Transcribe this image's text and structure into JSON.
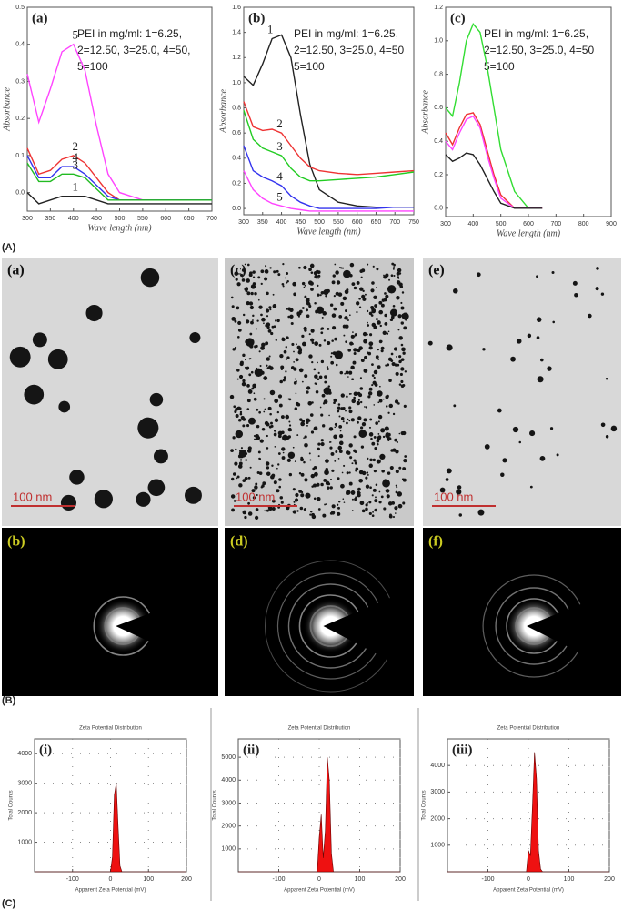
{
  "figure_labels": [
    "(A)",
    "(B)",
    "(C)"
  ],
  "chart_data": [
    {
      "type": "line",
      "panel_label": "(a)",
      "annotation": [
        "PEI in mg/ml: 1=6.25,",
        "2=12.50, 3=25.0, 4=50,",
        "5=100"
      ],
      "x_label": "Wave length (nm)",
      "y_label": "Absorbance",
      "x": [
        300,
        325,
        350,
        375,
        400,
        425,
        450,
        475,
        500,
        550,
        600,
        650,
        700
      ],
      "series": [
        {
          "name": "5",
          "color": "#ff44ff",
          "values": [
            0.32,
            0.19,
            0.28,
            0.38,
            0.4,
            0.33,
            0.18,
            0.05,
            0.0,
            -0.02,
            -0.02,
            -0.02,
            -0.02
          ]
        },
        {
          "name": "2",
          "color": "#ee3333",
          "values": [
            0.12,
            0.05,
            0.06,
            0.09,
            0.1,
            0.08,
            0.04,
            0.0,
            -0.02,
            -0.02,
            -0.02,
            -0.02,
            -0.02
          ]
        },
        {
          "name": "4",
          "color": "#3333ee",
          "values": [
            0.1,
            0.04,
            0.04,
            0.07,
            0.07,
            0.05,
            0.02,
            -0.01,
            -0.02,
            -0.02,
            -0.02,
            -0.02,
            -0.02
          ]
        },
        {
          "name": "3",
          "color": "#22bb22",
          "values": [
            0.08,
            0.03,
            0.03,
            0.05,
            0.05,
            0.04,
            0.01,
            -0.02,
            -0.02,
            -0.02,
            -0.02,
            -0.02,
            -0.02
          ]
        },
        {
          "name": "1",
          "color": "#222222",
          "values": [
            0.0,
            -0.03,
            -0.02,
            -0.01,
            -0.01,
            -0.01,
            -0.02,
            -0.03,
            -0.03,
            -0.03,
            -0.03,
            -0.03,
            -0.03
          ]
        }
      ],
      "xlim": [
        300,
        700
      ],
      "xticks": [
        300,
        350,
        400,
        450,
        500,
        550,
        600,
        650,
        700
      ],
      "ylim": [
        -0.05,
        0.5
      ],
      "yticks": [
        {
          "value": 0,
          "label": "0.0"
        },
        0.1,
        0.2,
        0.3,
        0.4,
        0.5
      ]
    },
    {
      "type": "line",
      "panel_label": "(b)",
      "annotation": [
        "PEI in mg/ml: 1=6.25,",
        "2=12.50, 3=25.0, 4=50",
        "5=100"
      ],
      "x_label": "Wave length (nm)",
      "y_label": "Absorbance",
      "x": [
        300,
        325,
        350,
        375,
        400,
        425,
        450,
        475,
        500,
        550,
        600,
        650,
        700,
        750
      ],
      "series": [
        {
          "name": "1",
          "color": "#222222",
          "values": [
            1.05,
            0.98,
            1.15,
            1.35,
            1.38,
            1.2,
            0.75,
            0.35,
            0.15,
            0.05,
            0.02,
            0.01,
            0.01,
            0.01
          ]
        },
        {
          "name": "2",
          "color": "#ee3333",
          "values": [
            0.85,
            0.65,
            0.62,
            0.63,
            0.6,
            0.5,
            0.4,
            0.33,
            0.3,
            0.28,
            0.27,
            0.28,
            0.29,
            0.3
          ]
        },
        {
          "name": "3",
          "color": "#22cc22",
          "values": [
            0.78,
            0.55,
            0.48,
            0.45,
            0.42,
            0.32,
            0.25,
            0.22,
            0.22,
            0.23,
            0.24,
            0.25,
            0.27,
            0.29
          ]
        },
        {
          "name": "4",
          "color": "#3333ee",
          "values": [
            0.5,
            0.3,
            0.25,
            0.22,
            0.18,
            0.1,
            0.05,
            0.02,
            0.0,
            0.0,
            0.0,
            0.0,
            0.01,
            0.01
          ]
        },
        {
          "name": "5",
          "color": "#ff44ff",
          "values": [
            0.3,
            0.15,
            0.08,
            0.04,
            0.02,
            0.0,
            -0.01,
            -0.02,
            -0.02,
            -0.02,
            -0.02,
            -0.02,
            -0.02,
            -0.02
          ]
        }
      ],
      "xlim": [
        300,
        750
      ],
      "xticks": [
        300,
        350,
        400,
        450,
        500,
        550,
        600,
        650,
        700,
        750
      ],
      "ylim": [
        -0.05,
        1.6
      ],
      "yticks": [
        {
          "value": 0,
          "label": "0.0"
        },
        0.2,
        0.4,
        0.6,
        0.8,
        {
          "value": 1,
          "label": "1.0"
        },
        1.2,
        1.4,
        1.6
      ]
    },
    {
      "type": "line",
      "panel_label": "(c)",
      "annotation": [
        "PEI in mg/ml: 1=6.25,",
        "2=12.50, 3=25.0, 4=50",
        "5=100"
      ],
      "x_label": "Wave length (nm)",
      "y_label": "Absorbance",
      "x": [
        300,
        325,
        350,
        375,
        400,
        425,
        450,
        475,
        500,
        550,
        600,
        650
      ],
      "series": [
        {
          "color": "#33dd33",
          "values": [
            0.6,
            0.55,
            0.75,
            1.0,
            1.1,
            1.05,
            0.85,
            0.6,
            0.35,
            0.1,
            0.0,
            0.0
          ]
        },
        {
          "color": "#ee3333",
          "values": [
            0.45,
            0.38,
            0.48,
            0.56,
            0.57,
            0.5,
            0.35,
            0.2,
            0.08,
            0.0,
            0.0,
            0.0
          ]
        },
        {
          "color": "#ff44ff",
          "values": [
            0.4,
            0.35,
            0.45,
            0.53,
            0.55,
            0.48,
            0.32,
            0.18,
            0.06,
            0.0,
            0.0,
            0.0
          ]
        },
        {
          "color": "#222222",
          "values": [
            0.32,
            0.28,
            0.3,
            0.33,
            0.32,
            0.26,
            0.18,
            0.1,
            0.03,
            0.0,
            0.0,
            0.0
          ]
        }
      ],
      "xlim": [
        300,
        900
      ],
      "xticks": [
        300,
        400,
        500,
        600,
        700,
        800,
        900
      ],
      "ylim": [
        -0.05,
        1.2
      ],
      "yticks": [
        {
          "value": 0,
          "label": "0.0"
        },
        0.2,
        0.4,
        0.6,
        0.8,
        {
          "value": 1,
          "label": "1.0"
        },
        1.2
      ]
    },
    {
      "type": "area",
      "panel_label": "(i)",
      "title": "Zeta Potential Distribution",
      "x_label": "Apparent Zeta Potential (mV)",
      "y_label": "Total Counts",
      "x": [
        -200,
        0,
        5,
        10,
        15,
        20,
        25,
        30,
        200
      ],
      "series": [
        {
          "color": "#ee1111",
          "values": [
            0,
            0,
            500,
            2600,
            3000,
            1500,
            200,
            0,
            0
          ]
        }
      ],
      "xlim": [
        -200,
        200
      ],
      "xticks": [
        -100,
        0,
        100,
        200
      ],
      "ylim": [
        0,
        4500
      ],
      "yticks": [
        1000,
        2000,
        3000,
        4000
      ],
      "grid": true
    },
    {
      "type": "area",
      "panel_label": "(ii)",
      "title": "Zeta Potential Distribution",
      "x_label": "Apparent Zeta Potential (mV)",
      "y_label": "Total Counts",
      "x": [
        -200,
        -5,
        0,
        5,
        10,
        15,
        20,
        25,
        30,
        35,
        40,
        200
      ],
      "series": [
        {
          "color": "#ee1111",
          "values": [
            0,
            0,
            1500,
            2500,
            600,
            1800,
            5000,
            4000,
            800,
            0,
            0,
            0
          ]
        }
      ],
      "xlim": [
        -200,
        200
      ],
      "xticks": [
        -100,
        0,
        100,
        200
      ],
      "ylim": [
        0,
        5800
      ],
      "yticks": [
        1000,
        2000,
        3000,
        4000,
        5000
      ],
      "grid": true
    },
    {
      "type": "area",
      "panel_label": "(iii)",
      "title": "Zeta Potential Distribution",
      "x_label": "Apparent Zeta Potential (mV)",
      "y_label": "Total Counts",
      "x": [
        -200,
        -5,
        0,
        5,
        10,
        15,
        20,
        25,
        30,
        35,
        200
      ],
      "series": [
        {
          "color": "#ee1111",
          "values": [
            0,
            0,
            800,
            600,
            2500,
            4500,
            3500,
            800,
            100,
            0,
            0
          ]
        }
      ],
      "xlim": [
        -200,
        200
      ],
      "xticks": [
        -100,
        0,
        100,
        200
      ],
      "ylim": [
        0,
        5000
      ],
      "yticks": [
        1000,
        2000,
        3000,
        4000
      ],
      "grid": true
    }
  ],
  "tem_panels": [
    {
      "label": "(a)",
      "scale_bar": "100 nm"
    },
    {
      "label": "(c)",
      "scale_bar": "100 nm"
    },
    {
      "label": "(e)",
      "scale_bar": "100 nm"
    }
  ],
  "saed_panels": [
    {
      "label": "(b)"
    },
    {
      "label": "(d)"
    },
    {
      "label": "(f)"
    }
  ]
}
